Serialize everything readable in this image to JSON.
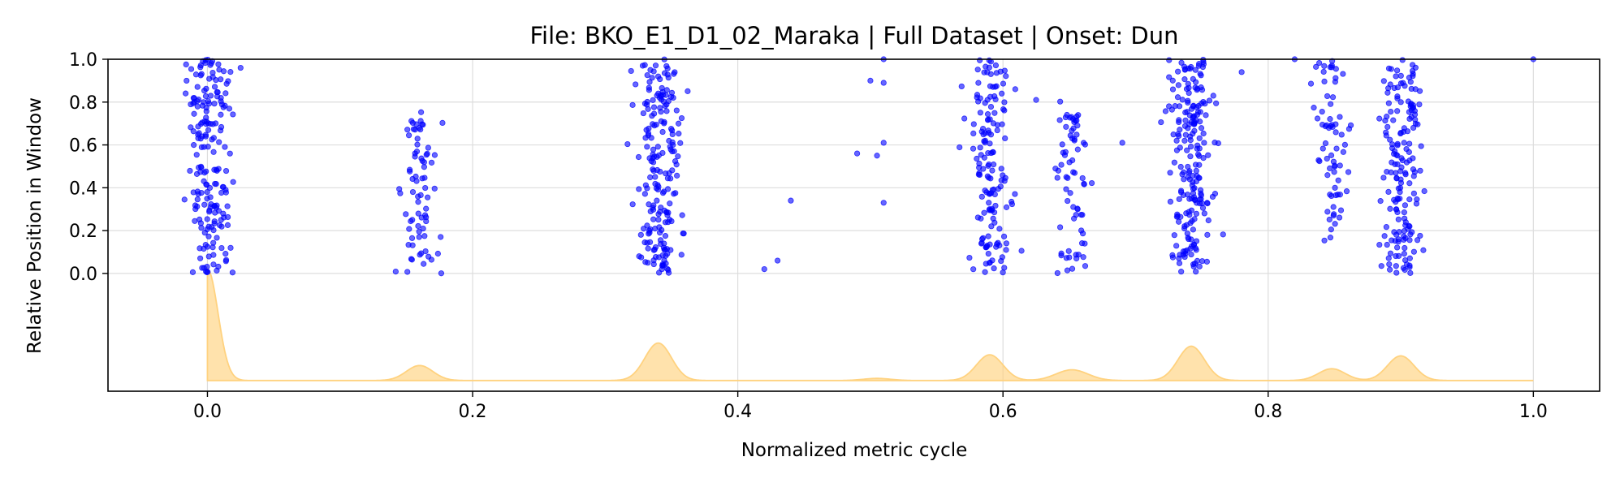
{
  "chart_data": {
    "type": "scatter",
    "title": "File: BKO_E1_D1_02_Maraka | Full Dataset | Onset: Dun",
    "xlabel": "Normalized metric cycle",
    "ylabel": "Relative Position in Window",
    "xlim": [
      -0.075,
      1.05
    ],
    "ylim": [
      -0.55,
      1.0
    ],
    "xticks": [
      0.0,
      0.2,
      0.4,
      0.6,
      0.8,
      1.0
    ],
    "xtick_labels": [
      "0.0",
      "0.2",
      "0.4",
      "0.6",
      "0.8",
      "1.0"
    ],
    "yticks": [
      0.0,
      0.2,
      0.4,
      0.6,
      0.8,
      1.0
    ],
    "ytick_labels": [
      "0.0",
      "0.2",
      "0.4",
      "0.6",
      "0.8",
      "1.0"
    ],
    "grid": true,
    "point_color": "#0000ff",
    "density_color": "#ffd27f",
    "clusters": [
      {
        "center": 0.002,
        "spread": 0.008,
        "count": 190,
        "ymin": 0.0,
        "ymax": 1.0
      },
      {
        "center": 0.16,
        "spread": 0.006,
        "count": 75,
        "ymin": 0.0,
        "ymax": 0.76
      },
      {
        "center": 0.34,
        "spread": 0.008,
        "count": 200,
        "ymin": 0.0,
        "ymax": 1.0
      },
      {
        "center": 0.59,
        "spread": 0.008,
        "count": 150,
        "ymin": 0.0,
        "ymax": 1.0
      },
      {
        "center": 0.652,
        "spread": 0.006,
        "count": 70,
        "ymin": 0.0,
        "ymax": 0.82
      },
      {
        "center": 0.742,
        "spread": 0.008,
        "count": 210,
        "ymin": 0.0,
        "ymax": 1.0
      },
      {
        "center": 0.848,
        "spread": 0.006,
        "count": 70,
        "ymin": 0.15,
        "ymax": 1.0
      },
      {
        "center": 0.9,
        "spread": 0.008,
        "count": 170,
        "ymin": 0.0,
        "ymax": 1.0
      }
    ],
    "outliers": [
      {
        "x": 0.025,
        "y": 0.96
      },
      {
        "x": 0.42,
        "y": 0.02
      },
      {
        "x": 0.43,
        "y": 0.06
      },
      {
        "x": 0.44,
        "y": 0.34
      },
      {
        "x": 0.49,
        "y": 0.56
      },
      {
        "x": 0.5,
        "y": 0.9
      },
      {
        "x": 0.505,
        "y": 0.55
      },
      {
        "x": 0.51,
        "y": 0.89
      },
      {
        "x": 0.51,
        "y": 0.33
      },
      {
        "x": 0.51,
        "y": 0.61
      },
      {
        "x": 0.51,
        "y": 1.0
      },
      {
        "x": 0.625,
        "y": 0.81
      },
      {
        "x": 0.69,
        "y": 0.61
      },
      {
        "x": 0.78,
        "y": 0.94
      },
      {
        "x": 0.82,
        "y": 1.0
      },
      {
        "x": 1.0,
        "y": 1.0
      }
    ],
    "density": {
      "x_range": [
        0.0,
        1.0
      ],
      "baseline": -0.5,
      "peaks": [
        {
          "x": 0.0,
          "height": 0.52,
          "width": 0.008
        },
        {
          "x": 0.16,
          "height": 0.07,
          "width": 0.01
        },
        {
          "x": 0.34,
          "height": 0.175,
          "width": 0.01
        },
        {
          "x": 0.505,
          "height": 0.01,
          "width": 0.01
        },
        {
          "x": 0.59,
          "height": 0.12,
          "width": 0.01
        },
        {
          "x": 0.652,
          "height": 0.05,
          "width": 0.012
        },
        {
          "x": 0.742,
          "height": 0.16,
          "width": 0.01
        },
        {
          "x": 0.848,
          "height": 0.055,
          "width": 0.01
        },
        {
          "x": 0.9,
          "height": 0.115,
          "width": 0.01
        }
      ]
    }
  }
}
